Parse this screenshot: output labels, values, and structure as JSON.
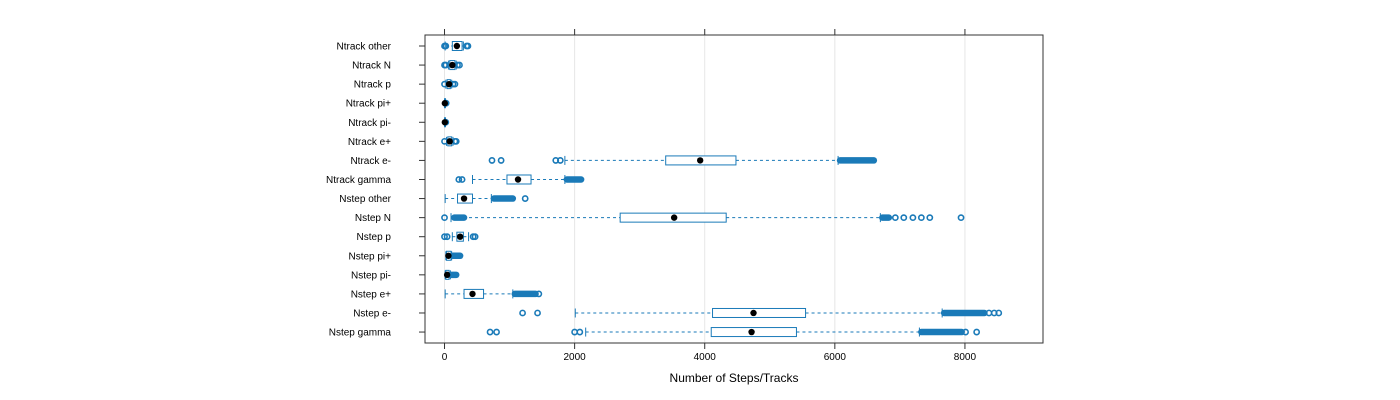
{
  "chart_data": {
    "type": "box",
    "xlabel": "Number of Steps/Tracks",
    "ylabel": "",
    "title": "",
    "xlim": [
      -300,
      9200
    ],
    "xticks": [
      0,
      2000,
      4000,
      6000,
      8000
    ],
    "grid": true,
    "colors": {
      "box": "#1a7ab8",
      "median": "#000000",
      "grid": "#e6e6e6"
    },
    "series": [
      {
        "name": "Ntrack other",
        "whisker_low": 10,
        "q1": 120,
        "median": 190,
        "q3": 270,
        "whisker_high": 290,
        "outliers": [
          0,
          20,
          340,
          360
        ],
        "outlier_bands": []
      },
      {
        "name": "Ntrack N",
        "whisker_low": 60,
        "q1": 80,
        "median": 120,
        "q3": 160,
        "whisker_high": 180,
        "outliers": [
          0,
          20,
          200,
          230
        ],
        "outlier_bands": []
      },
      {
        "name": "Ntrack p",
        "whisker_low": 20,
        "q1": 40,
        "median": 70,
        "q3": 90,
        "whisker_high": 110,
        "outliers": [
          0,
          130,
          160
        ],
        "outlier_bands": []
      },
      {
        "name": "Ntrack pi+",
        "whisker_low": 0,
        "q1": 0,
        "median": 5,
        "q3": 10,
        "whisker_high": 15,
        "outliers": [
          25
        ],
        "outlier_bands": []
      },
      {
        "name": "Ntrack pi-",
        "whisker_low": 0,
        "q1": 0,
        "median": 5,
        "q3": 10,
        "whisker_high": 15,
        "outliers": [
          20
        ],
        "outlier_bands": []
      },
      {
        "name": "Ntrack e+",
        "whisker_low": 30,
        "q1": 50,
        "median": 80,
        "q3": 110,
        "whisker_high": 130,
        "outliers": [
          0,
          160,
          180
        ],
        "outlier_bands": []
      },
      {
        "name": "Ntrack e-",
        "whisker_low": 1850,
        "q1": 3400,
        "median": 3930,
        "q3": 4480,
        "whisker_high": 6050,
        "outliers": [
          730,
          870,
          1710,
          1780
        ],
        "outlier_bands": [
          [
            6080,
            6600
          ]
        ]
      },
      {
        "name": "Ntrack gamma",
        "whisker_low": 430,
        "q1": 960,
        "median": 1130,
        "q3": 1330,
        "whisker_high": 1850,
        "outliers": [
          220,
          270
        ],
        "outlier_bands": [
          [
            1880,
            2100
          ]
        ]
      },
      {
        "name": "Nstep other",
        "whisker_low": 10,
        "q1": 200,
        "median": 300,
        "q3": 430,
        "whisker_high": 720,
        "outliers": [
          1240
        ],
        "outlier_bands": [
          [
            760,
            1050
          ]
        ]
      },
      {
        "name": "Nstep N",
        "whisker_low": 100,
        "q1": 2700,
        "median": 3530,
        "q3": 4330,
        "whisker_high": 6700,
        "outliers": [
          0,
          6930,
          7060,
          7200,
          7330,
          7460,
          7940
        ],
        "outlier_bands": [
          [
            150,
            300
          ],
          [
            6730,
            6830
          ]
        ]
      },
      {
        "name": "Nstep p",
        "whisker_low": 120,
        "q1": 190,
        "median": 240,
        "q3": 290,
        "whisker_high": 370,
        "outliers": [
          0,
          40,
          440,
          470
        ],
        "outlier_bands": []
      },
      {
        "name": "Nstep pi+",
        "whisker_low": 20,
        "q1": 30,
        "median": 60,
        "q3": 100,
        "whisker_high": 110,
        "outliers": [],
        "outlier_bands": [
          [
            130,
            240
          ]
        ]
      },
      {
        "name": "Nstep pi-",
        "whisker_low": 10,
        "q1": 20,
        "median": 40,
        "q3": 70,
        "whisker_high": 90,
        "outliers": [],
        "outlier_bands": [
          [
            100,
            180
          ]
        ]
      },
      {
        "name": "Nstep e+",
        "whisker_low": 10,
        "q1": 300,
        "median": 430,
        "q3": 600,
        "whisker_high": 1050,
        "outliers": [
          1450
        ],
        "outlier_bands": [
          [
            1080,
            1400
          ]
        ]
      },
      {
        "name": "Nstep e-",
        "whisker_low": 2010,
        "q1": 4120,
        "median": 4750,
        "q3": 5550,
        "whisker_high": 7650,
        "outliers": [
          1200,
          1430,
          8370,
          8450,
          8520
        ],
        "outlier_bands": [
          [
            7680,
            8300
          ]
        ]
      },
      {
        "name": "Nstep gamma",
        "whisker_low": 2170,
        "q1": 4100,
        "median": 4720,
        "q3": 5410,
        "whisker_high": 7300,
        "outliers": [
          700,
          800,
          2000,
          2080,
          8010,
          8180
        ],
        "outlier_bands": [
          [
            7330,
            7950
          ]
        ]
      }
    ]
  }
}
